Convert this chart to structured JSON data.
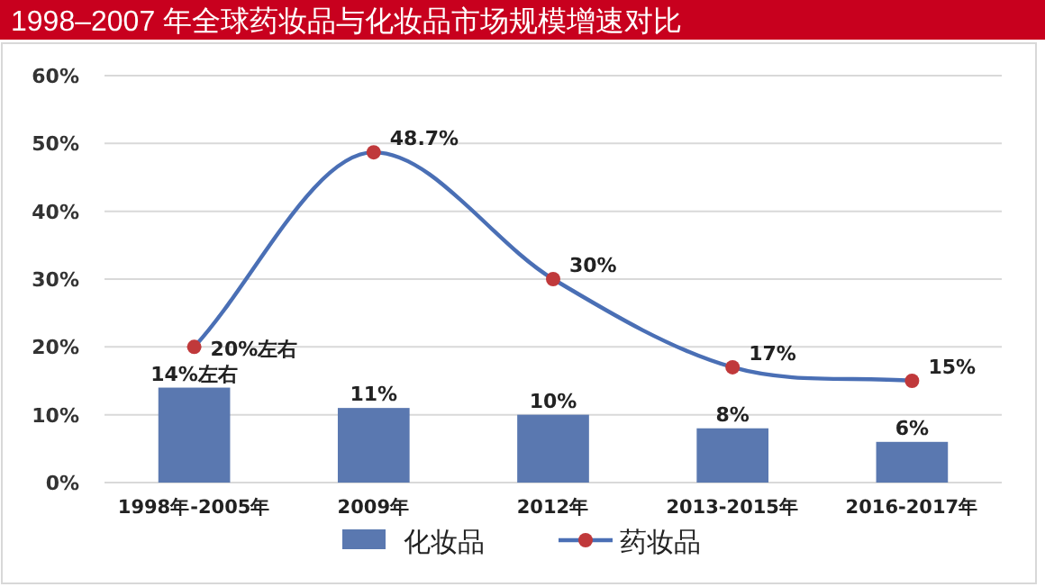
{
  "chart_data": {
    "type": "bar",
    "title": "1998–2007 年全球药妆品与化妆品市场规模增速对比",
    "categories": [
      "1998年-2005年",
      "2009年",
      "2012年",
      "2013-2015年",
      "2016-2017年"
    ],
    "series": [
      {
        "name": "化妆品",
        "color": "#5a78b0",
        "values": [
          14,
          11,
          10,
          8,
          6
        ],
        "value_labels": [
          "14%左右",
          "11%",
          "10%",
          "8%",
          "6%"
        ]
      },
      {
        "name": "药妆品",
        "type": "line",
        "color": "#4a6fb5",
        "marker": "circle",
        "colors": [
          "#c0393b",
          "#c0393b",
          "#c0393b",
          "#c0393b",
          "#c0393b"
        ],
        "values": [
          20,
          48.7,
          30,
          17,
          15
        ],
        "value_labels": [
          "20%左右",
          "48.7%",
          "30%",
          "17%",
          "15%"
        ]
      }
    ],
    "ylim": [
      0,
      60
    ],
    "yticks": [
      {
        "value": 0,
        "label": "0%"
      },
      {
        "value": 10,
        "label": "10%"
      },
      {
        "value": 20,
        "label": "20%"
      },
      {
        "value": 30,
        "label": "30%"
      },
      {
        "value": 40,
        "label": "40%"
      },
      {
        "value": 50,
        "label": "50%"
      },
      {
        "value": 60,
        "label": "60%"
      }
    ],
    "grid": "y",
    "legend": "bottom"
  }
}
